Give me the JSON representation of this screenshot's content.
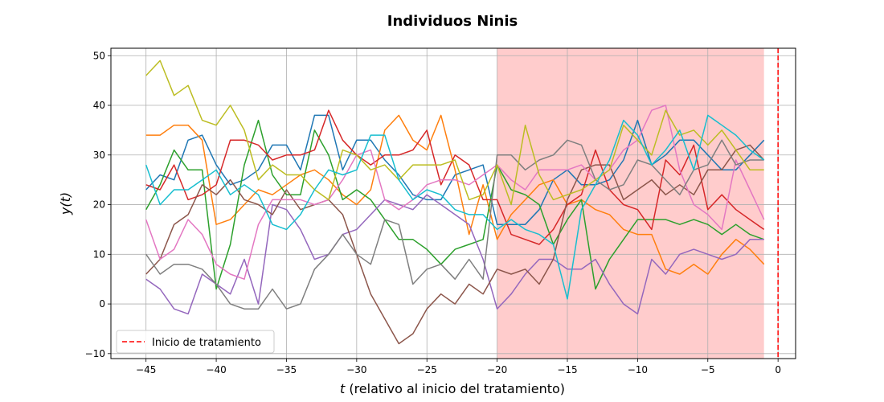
{
  "chart_data": {
    "type": "line",
    "title": "Individuos Ninis",
    "xlabel_var": "t",
    "xlabel_rest": " (relativo al inicio del tratamiento)",
    "ylabel": "y(t)",
    "xlim": [
      -47.5,
      1.25
    ],
    "ylim": [
      -11,
      51.5
    ],
    "xticks": [
      -45,
      -40,
      -35,
      -30,
      -25,
      -20,
      -15,
      -10,
      -5,
      0
    ],
    "yticks": [
      -10,
      0,
      10,
      20,
      30,
      40,
      50
    ],
    "grid": true,
    "treatment_window": {
      "x_start": -20,
      "x_end": -1,
      "color": "#ffcccc"
    },
    "treatment_line": {
      "x": 0,
      "color": "#ff0000",
      "style": "dashed",
      "label": "Inicio de tratamiento"
    },
    "legend_position": "lower-left",
    "x": [
      -45,
      -44,
      -43,
      -42,
      -41,
      -40,
      -39,
      -38,
      -37,
      -36,
      -35,
      -34,
      -33,
      -32,
      -31,
      -30,
      -29,
      -28,
      -27,
      -26,
      -25,
      -24,
      -23,
      -22,
      -21,
      -20,
      -19,
      -18,
      -17,
      -16,
      -15,
      -14,
      -13,
      -12,
      -11,
      -10,
      -9,
      -8,
      -7,
      -6,
      -5,
      -4,
      -3,
      -2,
      -1
    ],
    "series": [
      {
        "color": "#1f77b4",
        "values": [
          23,
          26,
          25,
          33,
          34,
          28,
          24,
          25,
          27,
          32,
          32,
          27,
          38,
          38,
          27,
          33,
          33,
          29,
          26,
          22,
          21,
          21,
          26,
          27,
          28,
          16,
          16,
          16,
          19,
          25,
          27,
          24,
          24,
          25,
          29,
          37,
          28,
          30,
          33,
          33,
          30,
          27,
          27,
          30,
          33
        ]
      },
      {
        "color": "#ff7f0e",
        "values": [
          34,
          34,
          36,
          36,
          33,
          16,
          17,
          20,
          23,
          22,
          24,
          26,
          27,
          25,
          22,
          20,
          23,
          35,
          38,
          33,
          31,
          38,
          27,
          14,
          24,
          13,
          18,
          21,
          24,
          25,
          20,
          21,
          19,
          18,
          15,
          14,
          14,
          7,
          6,
          8,
          6,
          10,
          13,
          11,
          8
        ]
      },
      {
        "color": "#2ca02c",
        "values": [
          19,
          24,
          31,
          27,
          27,
          3,
          12,
          28,
          37,
          26,
          22,
          22,
          35,
          30,
          21,
          23,
          21,
          17,
          13,
          13,
          11,
          8,
          11,
          12,
          13,
          28,
          23,
          22,
          20,
          12,
          17,
          21,
          3,
          9,
          13,
          17,
          17,
          17,
          16,
          17,
          16,
          14,
          16,
          14,
          13
        ]
      },
      {
        "color": "#d62728",
        "values": [
          24,
          23,
          28,
          21,
          22,
          24,
          33,
          33,
          32,
          29,
          30,
          30,
          31,
          39,
          33,
          30,
          28,
          30,
          30,
          31,
          35,
          24,
          30,
          28,
          21,
          21,
          14,
          13,
          12,
          15,
          20,
          22,
          31,
          23,
          20,
          19,
          15,
          29,
          26,
          32,
          19,
          22,
          19,
          17,
          15
        ]
      },
      {
        "color": "#9467bd",
        "values": [
          5,
          3,
          -1,
          -2,
          6,
          4,
          2,
          9,
          0,
          20,
          19,
          15,
          9,
          10,
          14,
          15,
          18,
          21,
          20,
          19,
          22,
          20,
          18,
          16,
          9,
          -1,
          2,
          6,
          9,
          9,
          7,
          7,
          9,
          4,
          0,
          -2,
          9,
          6,
          10,
          11,
          10,
          9,
          10,
          13,
          13
        ]
      },
      {
        "color": "#8c564b",
        "values": [
          6,
          9,
          16,
          18,
          24,
          22,
          25,
          21,
          20,
          18,
          23,
          19,
          20,
          21,
          18,
          10,
          2,
          -3,
          -8,
          -6,
          -1,
          2,
          0,
          4,
          2,
          7,
          6,
          7,
          4,
          9,
          21,
          27,
          28,
          28,
          21,
          23,
          25,
          22,
          24,
          22,
          27,
          27,
          31,
          32,
          29
        ]
      },
      {
        "color": "#e377c2",
        "values": [
          17,
          9,
          11,
          17,
          14,
          8,
          6,
          5,
          16,
          21,
          21,
          21,
          20,
          21,
          25,
          30,
          31,
          21,
          19,
          21,
          24,
          25,
          25,
          24,
          26,
          28,
          25,
          23,
          27,
          27,
          27,
          28,
          25,
          27,
          31,
          33,
          39,
          40,
          27,
          20,
          18,
          15,
          29,
          23,
          17
        ]
      },
      {
        "color": "#7f7f7f",
        "values": [
          10,
          6,
          8,
          8,
          7,
          4,
          0,
          -1,
          -1,
          3,
          -1,
          0,
          7,
          10,
          14,
          10,
          8,
          17,
          16,
          4,
          7,
          8,
          5,
          9,
          5,
          30,
          30,
          27,
          29,
          30,
          33,
          32,
          25,
          23,
          24,
          29,
          28,
          25,
          22,
          27,
          28,
          33,
          28,
          29,
          29
        ]
      },
      {
        "color": "#bcbd22",
        "values": [
          46,
          49,
          42,
          44,
          37,
          36,
          40,
          35,
          25,
          28,
          26,
          26,
          23,
          21,
          31,
          30,
          27,
          28,
          25,
          28,
          28,
          28,
          29,
          21,
          22,
          28,
          20,
          36,
          26,
          21,
          22,
          23,
          25,
          27,
          36,
          33,
          30,
          39,
          34,
          35,
          32,
          35,
          31,
          27,
          27
        ]
      },
      {
        "color": "#17becf",
        "values": [
          28,
          20,
          23,
          23,
          25,
          27,
          22,
          24,
          22,
          16,
          15,
          18,
          23,
          27,
          26,
          27,
          34,
          34,
          25,
          21,
          23,
          22,
          19,
          18,
          18,
          15,
          17,
          15,
          14,
          12,
          1,
          19,
          24,
          29,
          37,
          34,
          28,
          31,
          35,
          27,
          38,
          36,
          34,
          31,
          29
        ]
      }
    ]
  }
}
